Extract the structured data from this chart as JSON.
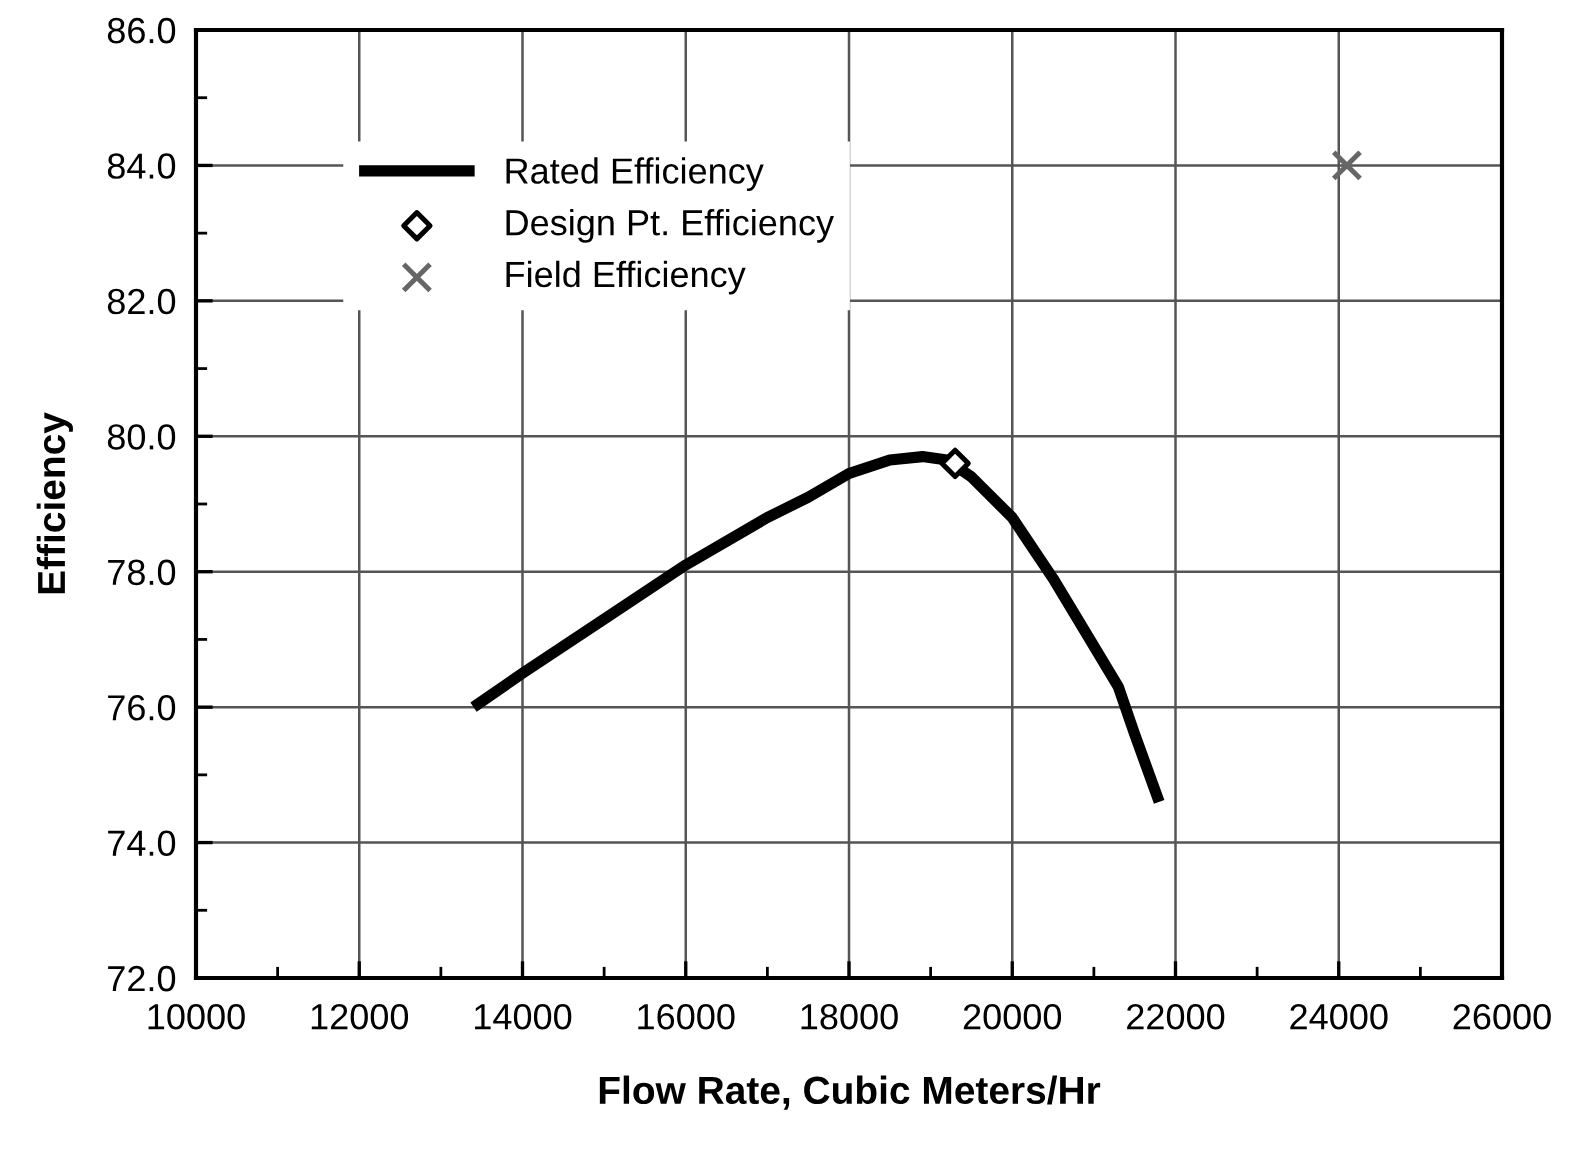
{
  "chart_data": {
    "type": "line",
    "xlabel": "Flow Rate, Cubic Meters/Hr",
    "ylabel": "Efficiency",
    "series": [
      {
        "name": "Rated Efficiency",
        "color": "#000000",
        "marker": "none",
        "line_style": "solid",
        "x": [
          13400,
          14000,
          15000,
          16000,
          17000,
          17500,
          18000,
          18500,
          18900,
          19200,
          19500,
          20000,
          20500,
          21000,
          21300,
          21500,
          21800
        ],
        "values": [
          76.0,
          76.5,
          77.3,
          78.1,
          78.8,
          79.1,
          79.45,
          79.65,
          79.7,
          79.65,
          79.4,
          78.8,
          77.9,
          76.9,
          76.3,
          75.6,
          74.6
        ]
      },
      {
        "name": "Design Pt. Efficiency",
        "type": "scatter",
        "color": "#000000",
        "marker": "diamond",
        "x": [
          19300
        ],
        "values": [
          79.6
        ]
      },
      {
        "name": "Field Efficiency",
        "type": "scatter",
        "color": "#666666",
        "marker": "cross",
        "x": [
          24100
        ],
        "values": [
          84.0
        ]
      }
    ],
    "xlim": [
      10000,
      26000
    ],
    "ylim": [
      72,
      86
    ],
    "xticks": [
      10000,
      {
        "value": 11000,
        "label": null
      },
      12000,
      {
        "value": 13000,
        "label": null
      },
      14000,
      {
        "value": 15000,
        "label": null
      },
      16000,
      {
        "value": 17000,
        "label": null
      },
      18000,
      {
        "value": 19000,
        "label": null
      },
      20000,
      {
        "value": 21000,
        "label": null
      },
      22000,
      {
        "value": 23000,
        "label": null
      },
      24000,
      {
        "value": 25000,
        "label": null
      },
      26000
    ],
    "yticks": [
      {
        "value": 72,
        "label": "72.0"
      },
      {
        "value": 73,
        "label": null
      },
      {
        "value": 74,
        "label": "74.0"
      },
      {
        "value": 75,
        "label": null
      },
      {
        "value": 76,
        "label": "76.0"
      },
      {
        "value": 77,
        "label": null
      },
      {
        "value": 78,
        "label": "78.0"
      },
      {
        "value": 79,
        "label": null
      },
      {
        "value": 80,
        "label": "80.0"
      },
      {
        "value": 81,
        "label": null
      },
      {
        "value": 82,
        "label": "82.0"
      },
      {
        "value": 83,
        "label": null
      },
      {
        "value": 84,
        "label": "84.0"
      },
      {
        "value": 85,
        "label": null
      },
      {
        "value": 86,
        "label": "86.0"
      }
    ],
    "grid": true,
    "legend": "top left"
  }
}
